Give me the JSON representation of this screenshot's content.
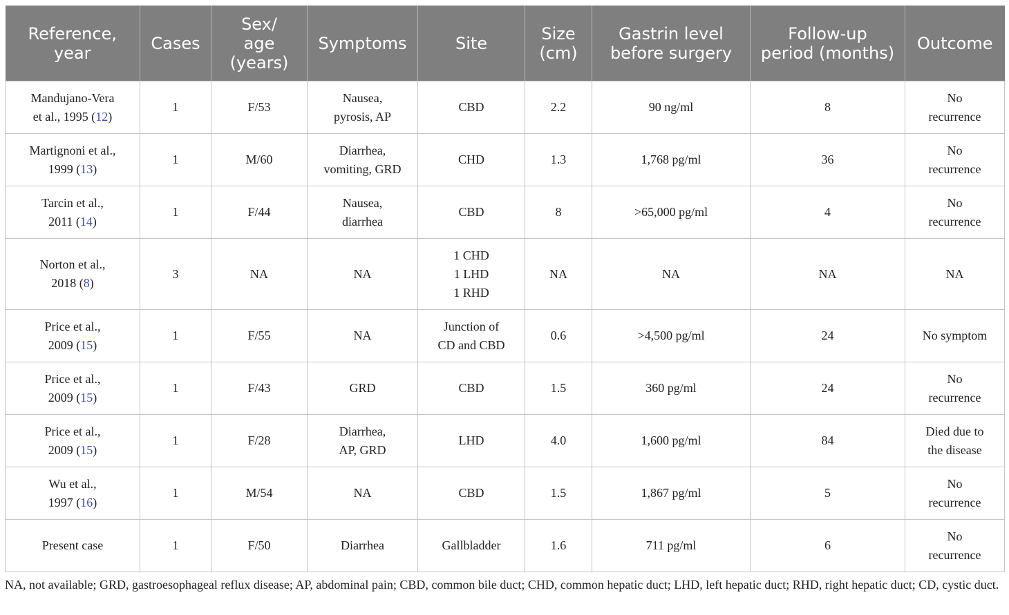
{
  "table": {
    "headers": [
      "Reference,\nyear",
      "Cases",
      "Sex/\nage\n(years)",
      "Symptoms",
      "Site",
      "Size\n(cm)",
      "Gastrin level\nbefore surgery",
      "Follow-up\nperiod (months)",
      "Outcome"
    ],
    "rows": [
      {
        "ref_text": "Mandujano-Vera\net al., 1995 (",
        "ref_num": "12",
        "ref_close": ")",
        "cases": "1",
        "sex_age": "F/53",
        "symptoms": "Nausea,\npyrosis, AP",
        "site": "CBD",
        "size": "2.2",
        "gastrin": "90 ng/ml",
        "followup": "8",
        "outcome": "No\nrecurrence"
      },
      {
        "ref_text": "Martignoni et al.,\n1999 (",
        "ref_num": "13",
        "ref_close": ")",
        "cases": "1",
        "sex_age": "M/60",
        "symptoms": "Diarrhea,\nvomiting, GRD",
        "site": "CHD",
        "size": "1.3",
        "gastrin": "1,768 pg/ml",
        "followup": "36",
        "outcome": "No\nrecurrence"
      },
      {
        "ref_text": "Tarcin et al.,\n2011 (",
        "ref_num": "14",
        "ref_close": ")",
        "cases": "1",
        "sex_age": "F/44",
        "symptoms": "Nausea,\ndiarrhea",
        "site": "CBD",
        "size": "8",
        "gastrin": ">65,000 pg/ml",
        "followup": "4",
        "outcome": "No\nrecurrence"
      },
      {
        "ref_text": "Norton et al.,\n2018 (",
        "ref_num": "8",
        "ref_close": ")",
        "cases": "3",
        "sex_age": "NA",
        "symptoms": "NA",
        "site": "1 CHD\n1 LHD\n1 RHD",
        "size": "NA",
        "gastrin": "NA",
        "followup": "NA",
        "outcome": "NA"
      },
      {
        "ref_text": "Price et al.,\n2009 (",
        "ref_num": "15",
        "ref_close": ")",
        "cases": "1",
        "sex_age": "F/55",
        "symptoms": "NA",
        "site": "Junction of\nCD and CBD",
        "size": "0.6",
        "gastrin": ">4,500 pg/ml",
        "followup": "24",
        "outcome": "No symptom"
      },
      {
        "ref_text": "Price et al.,\n2009 (",
        "ref_num": "15",
        "ref_close": ")",
        "cases": "1",
        "sex_age": "F/43",
        "symptoms": "GRD",
        "site": "CBD",
        "size": "1.5",
        "gastrin": "360 pg/ml",
        "followup": "24",
        "outcome": "No\nrecurrence"
      },
      {
        "ref_text": "Price et al.,\n2009 (",
        "ref_num": "15",
        "ref_close": ")",
        "cases": "1",
        "sex_age": "F/28",
        "symptoms": "Diarrhea,\nAP, GRD",
        "site": "LHD",
        "size": "4.0",
        "gastrin": "1,600 pg/ml",
        "followup": "84",
        "outcome": "Died due to\nthe disease"
      },
      {
        "ref_text": "Wu et al.,\n1997 (",
        "ref_num": "16",
        "ref_close": ")",
        "cases": "1",
        "sex_age": "M/54",
        "symptoms": "NA",
        "site": "CBD",
        "size": "1.5",
        "gastrin": "1,867 pg/ml",
        "followup": "5",
        "outcome": "No\nrecurrence"
      },
      {
        "ref_text": "Present case",
        "ref_num": "",
        "ref_close": "",
        "cases": "1",
        "sex_age": "F/50",
        "symptoms": "Diarrhea",
        "site": "Gallbladder",
        "size": "1.6",
        "gastrin": "711 pg/ml",
        "followup": "6",
        "outcome": "No\nrecurrence"
      }
    ]
  },
  "footnote": "NA, not available; GRD, gastroesophageal reflux disease; AP, abdominal pain; CBD, common bile duct; CHD, common hepatic duct; LHD, left hepatic duct; RHD, right hepatic duct; CD, cystic duct.",
  "colors": {
    "header_bg": "#7f7f7f",
    "header_text": "#ffffff",
    "reference_link": "#3d4ba6",
    "grid_line": "#c4c4c4"
  }
}
